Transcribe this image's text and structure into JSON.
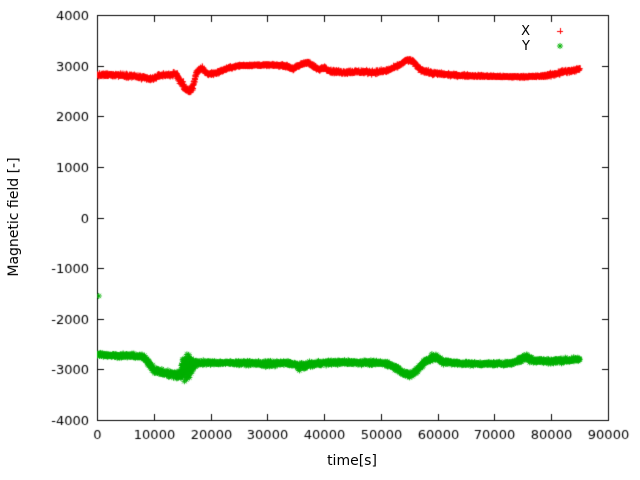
{
  "figure": {
    "background": "#ffffff",
    "border_color": "#000000"
  },
  "chart_data": {
    "type": "scatter",
    "title": "",
    "xlabel": "time[s]",
    "ylabel": "Magnetic field [-]",
    "xlim": [
      0,
      90000
    ],
    "ylim": [
      -4000,
      4000
    ],
    "xticks": [
      0,
      10000,
      20000,
      30000,
      40000,
      50000,
      60000,
      70000,
      80000,
      90000
    ],
    "yticks": [
      -4000,
      -3000,
      -2000,
      -1000,
      0,
      1000,
      2000,
      3000,
      4000
    ],
    "grid": false,
    "legend_position": "top-right-inside",
    "sample_dt": 40,
    "keypoints_format": "[time_s, value, noise_halfspread] envelope read from the dense point cloud",
    "legend": [
      {
        "label": "X",
        "marker": "plus",
        "color": "#ff0000"
      },
      {
        "label": "Y",
        "marker": "star",
        "color": "#00b000"
      }
    ],
    "series": [
      {
        "name": "X",
        "marker": "plus",
        "color": "#ff0000",
        "keypoints": [
          [
            0,
            2810,
            50
          ],
          [
            3000,
            2820,
            50
          ],
          [
            6000,
            2800,
            55
          ],
          [
            8500,
            2750,
            60
          ],
          [
            9500,
            2730,
            60
          ],
          [
            11000,
            2810,
            50
          ],
          [
            14000,
            2830,
            60
          ],
          [
            15200,
            2600,
            110
          ],
          [
            16000,
            2490,
            90
          ],
          [
            16800,
            2560,
            90
          ],
          [
            17500,
            2870,
            70
          ],
          [
            18500,
            2950,
            55
          ],
          [
            19500,
            2830,
            50
          ],
          [
            21000,
            2860,
            45
          ],
          [
            23000,
            2950,
            40
          ],
          [
            25000,
            3000,
            30
          ],
          [
            28000,
            3010,
            28
          ],
          [
            31000,
            3010,
            28
          ],
          [
            33000,
            3000,
            40
          ],
          [
            34500,
            2940,
            50
          ],
          [
            36000,
            3030,
            45
          ],
          [
            37000,
            3070,
            45
          ],
          [
            38000,
            2990,
            55
          ],
          [
            39000,
            2920,
            50
          ],
          [
            40000,
            2970,
            45
          ],
          [
            41000,
            2890,
            50
          ],
          [
            43000,
            2870,
            55
          ],
          [
            46000,
            2880,
            55
          ],
          [
            49000,
            2870,
            55
          ],
          [
            51000,
            2900,
            50
          ],
          [
            53000,
            3000,
            45
          ],
          [
            54500,
            3110,
            45
          ],
          [
            55500,
            3090,
            45
          ],
          [
            57000,
            2920,
            55
          ],
          [
            58500,
            2860,
            55
          ],
          [
            60000,
            2840,
            45
          ],
          [
            63000,
            2810,
            40
          ],
          [
            66000,
            2800,
            35
          ],
          [
            69000,
            2790,
            30
          ],
          [
            72000,
            2780,
            25
          ],
          [
            75000,
            2780,
            25
          ],
          [
            78000,
            2790,
            30
          ],
          [
            80000,
            2820,
            55
          ],
          [
            82000,
            2880,
            65
          ],
          [
            84000,
            2900,
            55
          ],
          [
            85000,
            2950,
            40
          ]
        ],
        "outliers": []
      },
      {
        "name": "Y",
        "marker": "star",
        "color": "#00b000",
        "keypoints": [
          [
            0,
            -2700,
            50
          ],
          [
            2000,
            -2720,
            50
          ],
          [
            4000,
            -2730,
            55
          ],
          [
            6000,
            -2730,
            55
          ],
          [
            8000,
            -2750,
            60
          ],
          [
            9000,
            -2850,
            80
          ],
          [
            10000,
            -3000,
            90
          ],
          [
            11500,
            -3070,
            90
          ],
          [
            13000,
            -3090,
            100
          ],
          [
            14500,
            -3120,
            120
          ],
          [
            15300,
            -2950,
            330
          ],
          [
            16200,
            -2950,
            330
          ],
          [
            17000,
            -2900,
            120
          ],
          [
            18000,
            -2870,
            60
          ],
          [
            20000,
            -2870,
            50
          ],
          [
            24000,
            -2870,
            50
          ],
          [
            28000,
            -2880,
            60
          ],
          [
            30000,
            -2900,
            90
          ],
          [
            31500,
            -2880,
            60
          ],
          [
            34000,
            -2880,
            60
          ],
          [
            36000,
            -2950,
            90
          ],
          [
            37500,
            -2900,
            70
          ],
          [
            40000,
            -2870,
            60
          ],
          [
            44000,
            -2860,
            60
          ],
          [
            48000,
            -2870,
            60
          ],
          [
            51000,
            -2880,
            60
          ],
          [
            53000,
            -2990,
            80
          ],
          [
            54500,
            -3110,
            80
          ],
          [
            55500,
            -3100,
            80
          ],
          [
            56500,
            -2990,
            80
          ],
          [
            58000,
            -2820,
            100
          ],
          [
            59500,
            -2760,
            110
          ],
          [
            61000,
            -2850,
            70
          ],
          [
            64000,
            -2880,
            50
          ],
          [
            67000,
            -2890,
            50
          ],
          [
            70000,
            -2890,
            50
          ],
          [
            73000,
            -2880,
            50
          ],
          [
            75500,
            -2760,
            110
          ],
          [
            77000,
            -2820,
            80
          ],
          [
            79000,
            -2840,
            60
          ],
          [
            81000,
            -2830,
            70
          ],
          [
            83000,
            -2820,
            70
          ],
          [
            85000,
            -2800,
            50
          ]
        ],
        "outliers": [
          [
            300,
            -1550
          ]
        ]
      }
    ]
  }
}
